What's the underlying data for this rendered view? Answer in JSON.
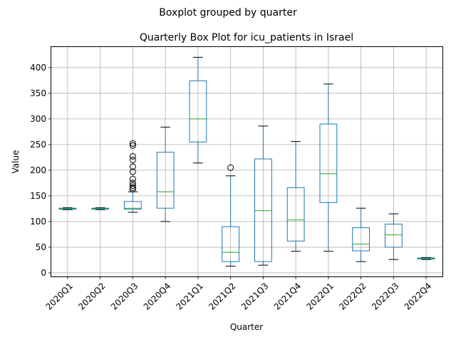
{
  "chart_data": {
    "type": "boxplot",
    "suptitle": "Boxplot grouped by quarter",
    "title": "Quarterly Box Plot for icu_patients in Israel",
    "xlabel": "Quarter",
    "ylabel": "Value",
    "ylim": [
      -7,
      440
    ],
    "yticks": [
      0,
      50,
      100,
      150,
      200,
      250,
      300,
      350,
      400
    ],
    "grid": true,
    "colors": {
      "box": "#1f77b4",
      "median": "#2ca02c",
      "whisker": "#000000",
      "grid": "#b0b0b0"
    },
    "categories": [
      "2020Q1",
      "2020Q2",
      "2020Q3",
      "2020Q4",
      "2021Q1",
      "2021Q2",
      "2021Q3",
      "2021Q4",
      "2022Q1",
      "2022Q2",
      "2022Q3",
      "2022Q4"
    ],
    "boxes": [
      {
        "whislo": 123,
        "q1": 124,
        "med": 125,
        "q3": 126,
        "whishi": 127,
        "fliers": []
      },
      {
        "whislo": 123,
        "q1": 124,
        "med": 125,
        "q3": 126,
        "whishi": 127,
        "fliers": []
      },
      {
        "whislo": 118,
        "q1": 124,
        "med": 126,
        "q3": 139,
        "whishi": 158,
        "fliers": [
          163,
          166,
          170,
          175,
          183,
          197,
          207,
          220,
          227,
          248,
          252
        ]
      },
      {
        "whislo": 100,
        "q1": 126,
        "med": 158,
        "q3": 235,
        "whishi": 284,
        "fliers": []
      },
      {
        "whislo": 214,
        "q1": 255,
        "med": 300,
        "q3": 374,
        "whishi": 420,
        "fliers": []
      },
      {
        "whislo": 13,
        "q1": 22,
        "med": 40,
        "q3": 90,
        "whishi": 189,
        "fliers": [
          205
        ]
      },
      {
        "whislo": 15,
        "q1": 22,
        "med": 121,
        "q3": 222,
        "whishi": 286,
        "fliers": []
      },
      {
        "whislo": 42,
        "q1": 62,
        "med": 103,
        "q3": 166,
        "whishi": 256,
        "fliers": []
      },
      {
        "whislo": 42,
        "q1": 137,
        "med": 193,
        "q3": 290,
        "whishi": 368,
        "fliers": []
      },
      {
        "whislo": 22,
        "q1": 43,
        "med": 56,
        "q3": 88,
        "whishi": 126,
        "fliers": []
      },
      {
        "whislo": 26,
        "q1": 50,
        "med": 74,
        "q3": 95,
        "whishi": 115,
        "fliers": []
      },
      {
        "whislo": 26,
        "q1": 27,
        "med": 28,
        "q3": 29,
        "whishi": 30,
        "fliers": []
      }
    ]
  }
}
